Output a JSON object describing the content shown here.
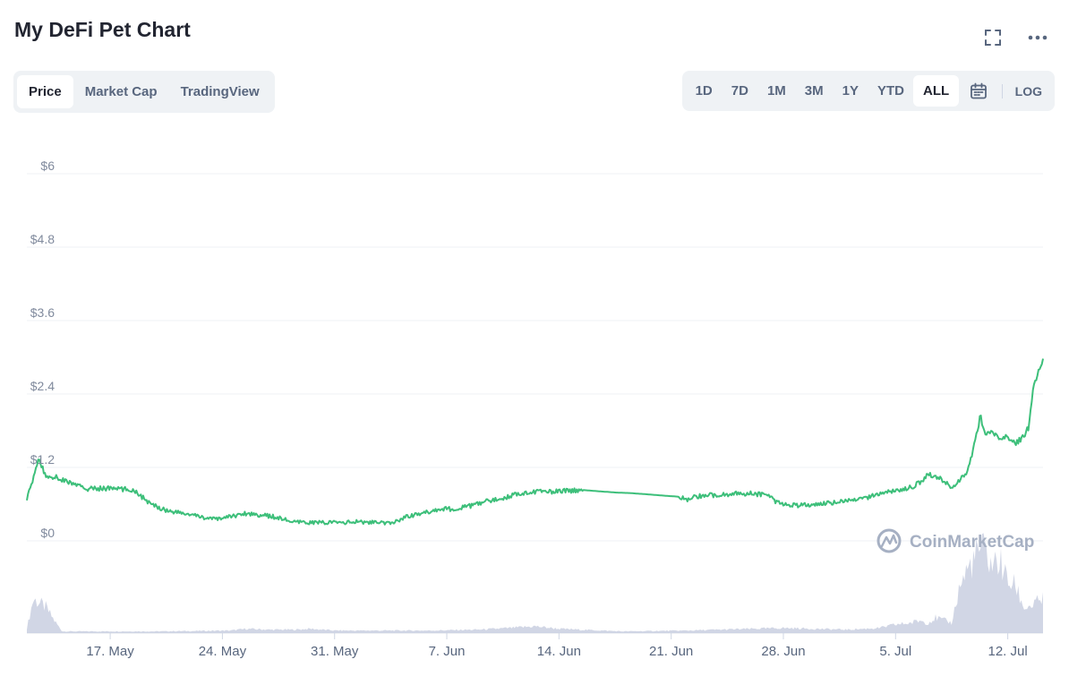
{
  "header": {
    "title": "My DeFi Pet Chart"
  },
  "icons": {
    "fullscreen": "fullscreen-icon",
    "more": "more-icon",
    "calendar": "calendar-icon",
    "watermark_logo": "coinmarketcap-logo"
  },
  "tabs": [
    {
      "label": "Price",
      "active": true
    },
    {
      "label": "Market Cap",
      "active": false
    },
    {
      "label": "TradingView",
      "active": false
    }
  ],
  "ranges": [
    {
      "label": "1D",
      "active": false
    },
    {
      "label": "7D",
      "active": false
    },
    {
      "label": "1M",
      "active": false
    },
    {
      "label": "3M",
      "active": false
    },
    {
      "label": "1Y",
      "active": false
    },
    {
      "label": "YTD",
      "active": false
    },
    {
      "label": "ALL",
      "active": true
    }
  ],
  "log_label": "LOG",
  "watermark": "CoinMarketCap",
  "colors": {
    "price_line": "#3dbf7a",
    "volume": "#c9cfe0",
    "grid": "#eff2f5",
    "active_bg": "#ffffff",
    "panel_bg": "#eff2f5"
  },
  "chart_data": {
    "type": "line",
    "title": "My DeFi Pet Chart",
    "ylabel": "",
    "xlabel": "",
    "y_ticks": [
      "$6",
      "$4.8",
      "$3.6",
      "$2.4",
      "$1.2",
      "$0"
    ],
    "y_tick_values": [
      6,
      4.8,
      3.6,
      2.4,
      1.2,
      0
    ],
    "ylim": [
      0,
      6
    ],
    "x_ticks": [
      "17. May",
      "24. May",
      "31. May",
      "7. Jun",
      "14. Jun",
      "21. Jun",
      "28. Jun",
      "5. Jul",
      "12. Jul"
    ],
    "x_tick_day": [
      17,
      24,
      31,
      38,
      45,
      52,
      59,
      66,
      73
    ],
    "xlim_day": [
      11.8,
      75.2
    ],
    "grid": true,
    "series": [
      {
        "unit": "USD",
        "x_day": [
          11.8,
          12.2,
          12.5,
          13.0,
          13.5,
          14.5,
          15.5,
          17.0,
          18.5,
          19.5,
          20.5,
          21.5,
          22.5,
          23.5,
          24.5,
          25.5,
          26.5,
          27.5,
          28.5,
          29.5,
          30.5,
          31.5,
          32.5,
          33.5,
          34.5,
          35.5,
          36.5,
          37.5,
          38.5,
          39.5,
          40.5,
          41.5,
          42.5,
          43.5,
          44.5,
          45.5,
          46.5,
          47.5,
          48.5,
          49.5,
          50.5,
          51.5,
          52.5,
          53.0,
          53.5,
          54.0,
          55.0,
          56.0,
          57.0,
          58.0,
          58.5,
          59.0,
          60.0,
          61.0,
          62.0,
          63.0,
          64.0,
          65.0,
          66.0,
          66.5,
          67.0,
          67.5,
          68.0,
          68.5,
          69.0,
          69.5,
          70.0,
          70.5,
          71.0,
          71.3,
          71.6,
          72.0,
          72.5,
          73.0,
          73.5,
          74.0,
          74.3,
          74.6,
          75.0,
          75.2
        ],
        "y": [
          0.7,
          1.0,
          1.35,
          1.05,
          1.05,
          0.95,
          0.85,
          0.86,
          0.83,
          0.6,
          0.5,
          0.45,
          0.4,
          0.35,
          0.4,
          0.45,
          0.42,
          0.38,
          0.3,
          0.3,
          0.3,
          0.3,
          0.31,
          0.3,
          0.28,
          0.4,
          0.45,
          0.52,
          0.52,
          0.57,
          0.65,
          0.7,
          0.78,
          0.8,
          0.8,
          0.82,
          0.83,
          0.81,
          0.79,
          0.78,
          0.76,
          0.74,
          0.72,
          0.66,
          0.72,
          0.74,
          0.75,
          0.78,
          0.77,
          0.75,
          0.65,
          0.6,
          0.58,
          0.6,
          0.62,
          0.65,
          0.68,
          0.78,
          0.82,
          0.85,
          0.88,
          0.95,
          1.08,
          1.05,
          0.98,
          0.85,
          1.0,
          1.15,
          1.65,
          2.05,
          1.7,
          1.8,
          1.65,
          1.7,
          1.6,
          1.7,
          1.85,
          2.5,
          2.85,
          3.0
        ]
      }
    ],
    "volume": {
      "x_day": [
        11.8,
        12.2,
        12.6,
        13.0,
        13.5,
        14.0,
        20.0,
        24.5,
        25.5,
        27.0,
        28.5,
        29.5,
        31.0,
        32.5,
        34.0,
        37.0,
        40.0,
        42.0,
        43.5,
        45.0,
        49.0,
        53.0,
        55.0,
        57.0,
        59.0,
        61.0,
        63.0,
        65.0,
        66.0,
        67.0,
        67.5,
        68.0,
        68.5,
        69.0,
        69.5,
        70.0,
        70.5,
        71.0,
        71.3,
        71.6,
        72.0,
        72.5,
        73.0,
        73.5,
        74.0,
        74.5,
        75.0,
        75.2
      ],
      "values": [
        0.05,
        0.4,
        0.35,
        0.3,
        0.15,
        0.02,
        0.02,
        0.03,
        0.05,
        0.04,
        0.04,
        0.05,
        0.03,
        0.03,
        0.03,
        0.03,
        0.04,
        0.06,
        0.08,
        0.05,
        0.02,
        0.03,
        0.04,
        0.05,
        0.06,
        0.05,
        0.04,
        0.06,
        0.1,
        0.12,
        0.15,
        0.12,
        0.18,
        0.15,
        0.12,
        0.55,
        0.75,
        0.9,
        1.0,
        0.95,
        0.8,
        0.85,
        0.6,
        0.55,
        0.3,
        0.32,
        0.38,
        0.4
      ]
    }
  }
}
